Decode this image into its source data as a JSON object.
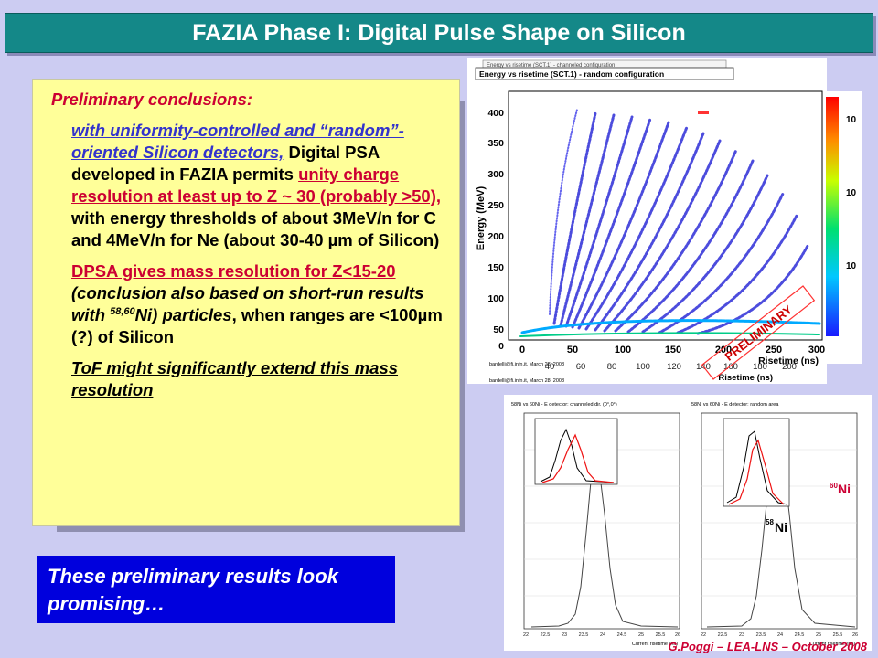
{
  "title": "FAZIA Phase I: Digital Pulse Shape on Silicon",
  "conclusions": {
    "heading": "Preliminary conclusions:",
    "p1_blue": "with uniformity-controlled and “random”-oriented Silicon detectors,",
    "p1_text1": "Digital PSA developed in FAZIA permits",
    "p1_red": "unity charge resolution at least up to Z ~ 30 (probably >50),",
    "p1_text2": "with energy thresholds of about 3MeV/n for C and  4MeV/n for Ne (about 30-40 µm of Silicon)",
    "p2_red": "DPSA gives mass resolution for Z<15-20",
    "p2_text1": "(conclusion also based on short-run results with",
    "p2_sup": "58,60",
    "p2_text2": "Ni) particles",
    "p2_text3": ", when ranges are <100µm (?) of Silicon",
    "p3": "ToF might significantly extend this mass resolution"
  },
  "promise": "These preliminary results look promising…",
  "footer": "G.Poggi – LEA-LNS – October 2008",
  "figure_top": {
    "title": "Energy vs risetime (SCT.1) - random configuration",
    "back_title": "Energy vs risetime (SCT.1) - channeled configuration",
    "ylabel": "Energy (MeV)",
    "xlabel": "Risetime (ns)",
    "xlabel_back": "Risetime (ns)",
    "yticks": [
      "400",
      "350",
      "300",
      "250",
      "200",
      "150",
      "100",
      "50",
      "0"
    ],
    "xticks": [
      "0",
      "50",
      "100",
      "150",
      "200",
      "250",
      "300"
    ],
    "xticks_back": [
      "40",
      "60",
      "80",
      "100",
      "120",
      "140",
      "160",
      "180",
      "200"
    ],
    "colorbar_ticks": [
      "10",
      "10",
      "10"
    ],
    "credit": "bardelli@fi.infn.it, March 28, 2008",
    "credit_back": "bardelli@fi.infn.it, March 28, 2008",
    "stamp": "PRELIMINARY"
  },
  "figure_bottom": {
    "left_title": "58Ni vs 60Ni - E detector: channeled dir. (0°,0°)",
    "right_title": "58Ni vs 60Ni - E detector: random area",
    "xlabel": "Current risetime (ns)",
    "xticks": [
      "22",
      "22.5",
      "23",
      "23.5",
      "24",
      "24.5",
      "25",
      "25.5",
      "26"
    ],
    "label_60": "Ni",
    "label_60_sup": "60",
    "label_58": "Ni",
    "label_58_sup": "58"
  }
}
